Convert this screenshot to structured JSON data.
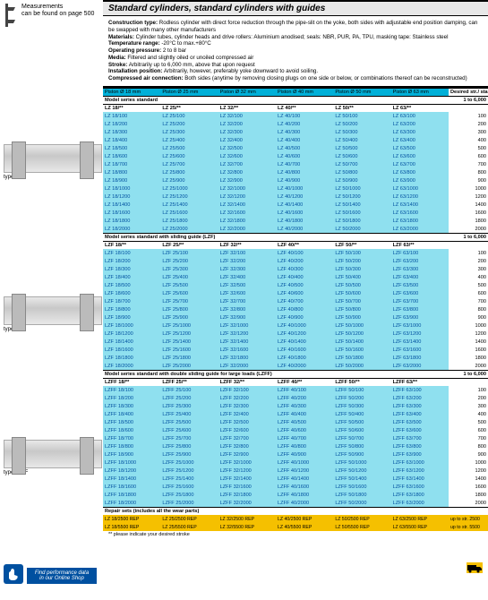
{
  "measure": {
    "l1": "Measurements",
    "l2": "can be found on page 500"
  },
  "title": "Standard cylinders, standard cylinders with guides",
  "desc": {
    "construction_lbl": "Construction type:",
    "construction": " Rodless cylinder with direct force reduction through the pipe-slit on the yoke, both sides with adjustable end position damping, can be swapped with many other manufacturers",
    "materials_lbl": "Materials:",
    "materials": " Cylinder tubes, cylinder heads and drive rollers: Aluminium anodised; seals: NBR, PUR, PA, TPU, masking tape: Stainless steel",
    "temp_lbl": "Temperature range:",
    "temp": " -20°C to max.+80°C",
    "press_lbl": "Operating pressure:",
    "press": " 2 to 8 bar",
    "media_lbl": "Media:",
    "media": " Filtered and slightly oiled or unoiled compressed air",
    "stroke_lbl": "Stroke:",
    "stroke": " Arbitrarily up to 6,000 mm, above that upon request",
    "install_lbl": "Installation position:",
    "install": " Arbitrarily, however, preferably yoke downward to avoid soiling.",
    "compr_lbl": "Compressed air connection:",
    "compr": " Both sides (anytime by removing closing plugs on one side or below, or combinations thereof can be reconstructed)"
  },
  "hdr": {
    "p18": "Piston Ø 18 mm",
    "p25": "Piston Ø 25 mm",
    "p32": "Piston Ø 32 mm",
    "p40": "Piston Ø 40 mm",
    "p50": "Piston Ø 50 mm",
    "p63": "Piston Ø 63 mm",
    "des": "Desired str./ standard str."
  },
  "series": [
    {
      "name": "Model series standard",
      "range": "1 to 6,000",
      "sub": [
        "LZ 18/**",
        "LZ 25/**",
        "LZ 32/**",
        "LZ 40/**",
        "LZ 50/**",
        "LZ 63/**"
      ],
      "p": "LZ",
      "strokes": [
        100,
        200,
        300,
        400,
        500,
        600,
        700,
        800,
        900,
        1000,
        1200,
        1400,
        1600,
        1800,
        2000
      ]
    },
    {
      "name": "Model series standard with sliding guide (LZF)",
      "range": "1 to 6,000",
      "sub": [
        "LZF 18/**",
        "LZF 25/**",
        "LZF 32/**",
        "LZF 40/**",
        "LZF 50/**",
        "LZF 63/**"
      ],
      "p": "LZF",
      "strokes": [
        100,
        200,
        300,
        400,
        500,
        600,
        700,
        800,
        900,
        1000,
        1200,
        1400,
        1600,
        1800,
        2000
      ]
    },
    {
      "name": "Model series standard with double sliding guide for large loads (LZFF)",
      "range": "1 to 6,000",
      "sub": [
        "LZFF 18/**",
        "LZFF 25/**",
        "LZFF 32/**",
        "LZFF 40/**",
        "LZFF 50/**",
        "LZFF 63/**"
      ],
      "p": "LZFF",
      "strokes": [
        100,
        200,
        300,
        400,
        500,
        600,
        700,
        800,
        900,
        1000,
        1200,
        1400,
        1600,
        1800,
        2000
      ]
    }
  ],
  "repair": {
    "title": "Repair sets (includes all the wear parts)",
    "cells": [
      "LZ 18/2500 REP",
      "LZ 25/2500 REP",
      "LZ 32/2500 REP",
      "LZ 40/2500 REP",
      "LZ 50/2500 REP",
      "LZ 63/2500 REP",
      "up to str. 2500",
      "LZ 18/5500 REP",
      "LZ 25/5500 REP",
      "LZ 32/5500 REP",
      "LZ 40/5500 REP",
      "LZ 50/5500 REP",
      "LZ 63/5500 REP",
      "up to str. 5500"
    ]
  },
  "foot": "** please indicate your desired stroke",
  "types": {
    "lz": "type LZ",
    "lzf": "type LZF",
    "lzff": "type LZFF"
  },
  "shop": {
    "l1": "Find performance data",
    "l2": "in our Online Shop"
  },
  "dia": [
    18,
    25,
    32,
    40,
    50,
    63
  ]
}
